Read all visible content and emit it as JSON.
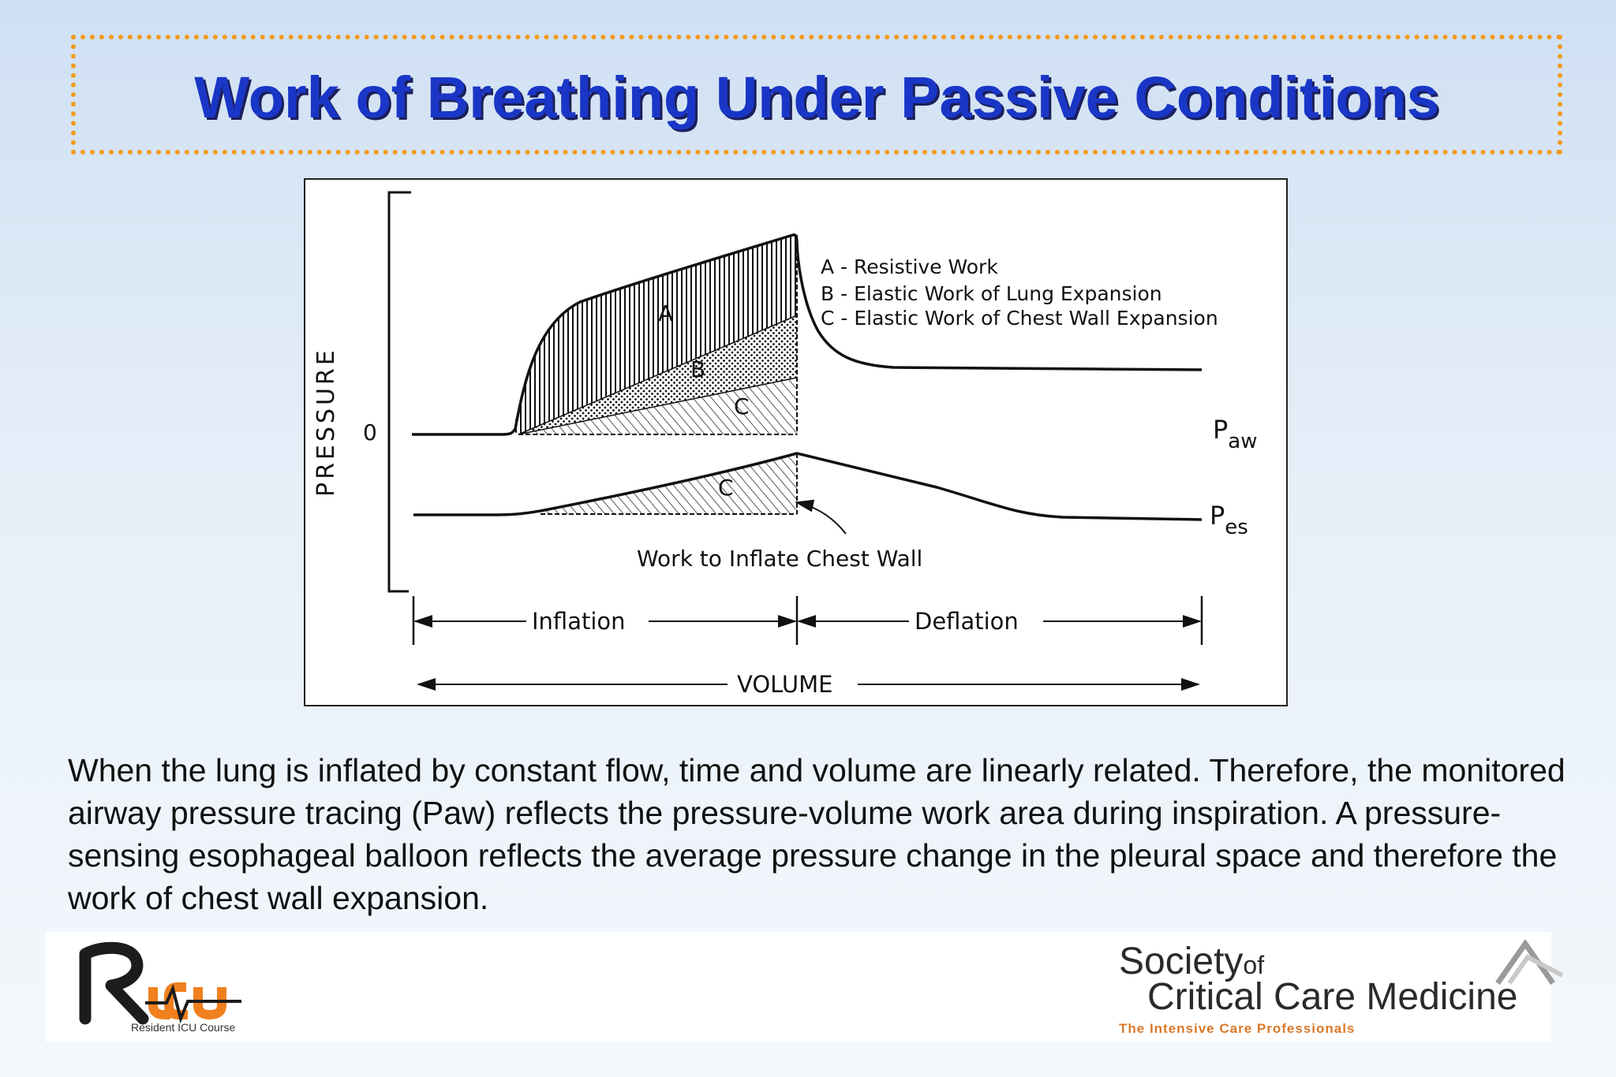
{
  "slide": {
    "title": "Work of Breathing Under Passive Conditions",
    "caption": "When the lung is inflated by constant flow, time and volume are linearly related.  Therefore, the monitored airway pressure tracing (Paw)  reflects the  pressure-volume work area during inspiration. A pressure-sensing esophageal balloon reflects the average pressure change in the pleural space and therefore the work of chest wall expansion."
  },
  "diagram": {
    "y_axis_label": "PRESSURE",
    "zero_label": "0",
    "legend": [
      "A - Resistive Work",
      "B - Elastic Work of Lung Expansion",
      "C - Elastic Work of Chest Wall Expansion"
    ],
    "region_labels": {
      "a": "A",
      "b": "B",
      "c": "C",
      "c2": "C"
    },
    "trace_paw": {
      "main": "P",
      "sub": "aw"
    },
    "trace_pes": {
      "main": "P",
      "sub": "es"
    },
    "annotation": "Work to Inflate Chest Wall",
    "phase_inflation": "Inflation",
    "phase_deflation": "Deflation",
    "x_axis_label": "VOLUME"
  },
  "footer": {
    "ricu_logo_text": "RICU",
    "ricu_subtitle": "Resident ICU Course",
    "sccm_society": "Society",
    "sccm_of": "of",
    "sccm_ccm": "Critical Care Medicine",
    "sccm_tagline": "The Intensive Care Professionals"
  },
  "colors": {
    "title": "#1a36c7",
    "title_frame": "#f39a1a",
    "ricu_orange": "#f0801e",
    "sccm_tagline": "#d9792a"
  }
}
